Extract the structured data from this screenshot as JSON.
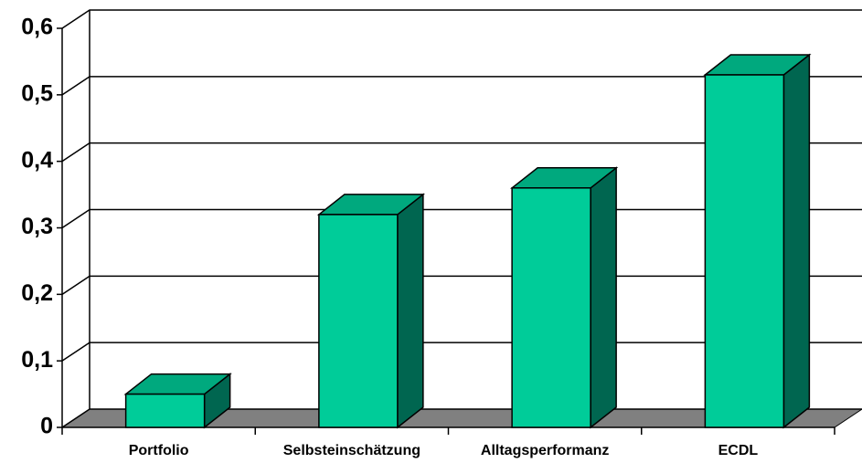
{
  "chart_data": {
    "type": "bar3d",
    "categories": [
      "Portfolio",
      "Selbsteinschätzung",
      "Alltagsperformanz",
      "ECDL"
    ],
    "values": [
      0.05,
      0.32,
      0.36,
      0.53
    ],
    "color": "#00cc99",
    "ylim": [
      0,
      0.6
    ],
    "yticks": [
      0,
      {
        "value": 0.1,
        "label": "0,1"
      },
      {
        "value": 0.2,
        "label": "0,2"
      },
      {
        "value": 0.3,
        "label": "0,3"
      },
      {
        "value": 0.4,
        "label": "0,4"
      },
      {
        "value": 0.5,
        "label": "0,5"
      },
      {
        "value": 0.6,
        "label": "0,6"
      }
    ],
    "grid": true
  }
}
